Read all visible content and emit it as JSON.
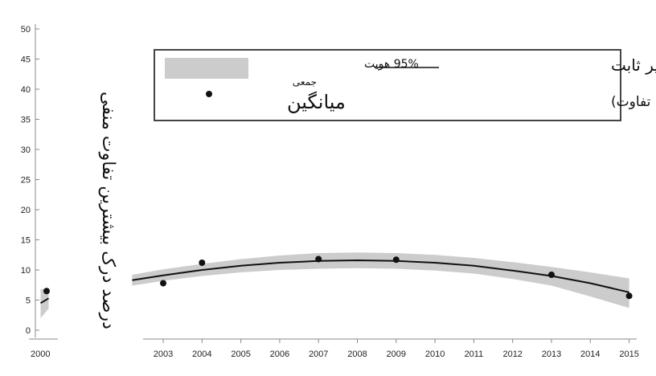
{
  "chart_data": {
    "type": "line",
    "ylabel": "درصد درک بیشترین تفاوت منفی",
    "xlabel": "",
    "x_ticks": [
      "2003",
      "2004",
      "2005",
      "2006",
      "2007",
      "2008",
      "2009",
      "2010",
      "2011",
      "2012",
      "2013",
      "2014",
      "2015"
    ],
    "y_ticks": [
      "0",
      "5",
      "10",
      "15",
      "20",
      "25",
      "30",
      "35",
      "40",
      "45",
      "50"
    ],
    "left_strip_x_tick": "2000",
    "ylim": [
      0,
      50
    ],
    "points": [
      {
        "x": 2003,
        "y": 7.8
      },
      {
        "x": 2004,
        "y": 11.2
      },
      {
        "x": 2007,
        "y": 11.8
      },
      {
        "x": 2009,
        "y": 11.7
      },
      {
        "x": 2013,
        "y": 9.2
      },
      {
        "x": 2015,
        "y": 5.7
      }
    ],
    "left_strip_points": [
      {
        "x": 2000,
        "y": 6.5
      }
    ],
    "fit_line": [
      {
        "x": 2002.2,
        "y": 8.3
      },
      {
        "x": 2003,
        "y": 9.1
      },
      {
        "x": 2004,
        "y": 10.0
      },
      {
        "x": 2005,
        "y": 10.7
      },
      {
        "x": 2006,
        "y": 11.2
      },
      {
        "x": 2007,
        "y": 11.5
      },
      {
        "x": 2008,
        "y": 11.6
      },
      {
        "x": 2009,
        "y": 11.5
      },
      {
        "x": 2010,
        "y": 11.2
      },
      {
        "x": 2011,
        "y": 10.7
      },
      {
        "x": 2012,
        "y": 9.9
      },
      {
        "x": 2013,
        "y": 9.0
      },
      {
        "x": 2014,
        "y": 7.8
      },
      {
        "x": 2015,
        "y": 6.3
      }
    ],
    "band_upper": [
      {
        "x": 2002.2,
        "y": 9.2
      },
      {
        "x": 2003,
        "y": 10.1
      },
      {
        "x": 2004,
        "y": 11.0
      },
      {
        "x": 2005,
        "y": 11.8
      },
      {
        "x": 2006,
        "y": 12.4
      },
      {
        "x": 2007,
        "y": 12.8
      },
      {
        "x": 2008,
        "y": 12.9
      },
      {
        "x": 2009,
        "y": 12.8
      },
      {
        "x": 2010,
        "y": 12.5
      },
      {
        "x": 2011,
        "y": 12.0
      },
      {
        "x": 2012,
        "y": 11.3
      },
      {
        "x": 2013,
        "y": 10.5
      },
      {
        "x": 2014,
        "y": 9.6
      },
      {
        "x": 2015,
        "y": 8.6
      }
    ],
    "band_lower": [
      {
        "x": 2002.2,
        "y": 7.4
      },
      {
        "x": 2003,
        "y": 8.2
      },
      {
        "x": 2004,
        "y": 9.0
      },
      {
        "x": 2005,
        "y": 9.6
      },
      {
        "x": 2006,
        "y": 10.0
      },
      {
        "x": 2007,
        "y": 10.2
      },
      {
        "x": 2008,
        "y": 10.3
      },
      {
        "x": 2009,
        "y": 10.2
      },
      {
        "x": 2010,
        "y": 9.9
      },
      {
        "x": 2011,
        "y": 9.4
      },
      {
        "x": 2012,
        "y": 8.5
      },
      {
        "x": 2013,
        "y": 7.4
      },
      {
        "x": 2014,
        "y": 5.6
      },
      {
        "x": 2015,
        "y": 3.7
      }
    ],
    "left_strip_fit": [
      {
        "x": 1999.7,
        "y": 4.5
      },
      {
        "x": 2000.1,
        "y": 5.3
      }
    ],
    "left_strip_band": {
      "upper": [
        {
          "x": 1999.7,
          "y": 6.8
        },
        {
          "x": 2000.1,
          "y": 6.9
        }
      ],
      "lower": [
        {
          "x": 1999.7,
          "y": 2.0
        },
        {
          "x": 2000.1,
          "y": 3.6
        }
      ]
    },
    "legend": {
      "band_label": "95% هویت",
      "band_label_line2": "جمعی",
      "line_label": "مقادیر ثابت",
      "line_label_sub": "(درصد بیشترین میزان تفاوت)",
      "point_label": "میانگین"
    },
    "colors": {
      "band": "#cccccc",
      "line": "#111111",
      "points": "#111111",
      "legend_border": "#444444"
    }
  }
}
